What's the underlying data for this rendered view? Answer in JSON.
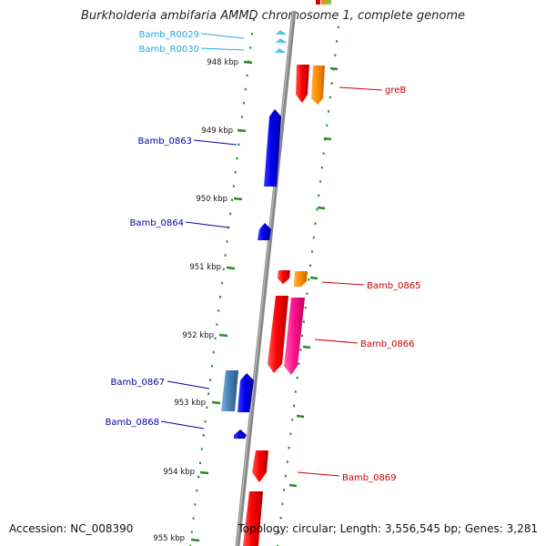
{
  "title": "Burkholderia ambifaria AMMD chromosome 1, complete genome",
  "accession": "Accession: NC_008390",
  "topology": "Topology: circular; Length: 3,556,545 bp; Genes: 3,281",
  "ticks": [
    {
      "label": "948 kbp",
      "kbp": 948
    },
    {
      "label": "949 kbp",
      "kbp": 949
    },
    {
      "label": "950 kbp",
      "kbp": 950
    },
    {
      "label": "951 kbp",
      "kbp": 951
    },
    {
      "label": "952 kbp",
      "kbp": 952
    },
    {
      "label": "953 kbp",
      "kbp": 953
    },
    {
      "label": "954 kbp",
      "kbp": 954
    },
    {
      "label": "955 kbp",
      "kbp": 955
    }
  ],
  "genes": [
    {
      "name": "Bamb_R0029",
      "strand": "minus",
      "type": "tRNA",
      "color": "#33bbee"
    },
    {
      "name": "Bamb_R0030",
      "strand": "minus",
      "type": "tRNA",
      "color": "#33bbee"
    },
    {
      "name": "greB",
      "strand": "plus",
      "type": "CDS",
      "color": "#dd0000"
    },
    {
      "name": "Bamb_0863",
      "strand": "minus",
      "type": "CDS",
      "color": "#0000cc"
    },
    {
      "name": "Bamb_0864",
      "strand": "minus",
      "type": "CDS",
      "color": "#0000cc"
    },
    {
      "name": "Bamb_0865",
      "strand": "plus",
      "type": "CDS",
      "color": "#dd0000"
    },
    {
      "name": "Bamb_0866",
      "strand": "plus",
      "type": "CDS",
      "color": "#dd0000"
    },
    {
      "name": "Bamb_0867",
      "strand": "minus",
      "type": "CDS",
      "color": "#0000cc"
    },
    {
      "name": "Bamb_0868",
      "strand": "minus",
      "type": "CDS",
      "color": "#0000cc"
    },
    {
      "name": "Bamb_0869",
      "strand": "plus",
      "type": "CDS",
      "color": "#dd0000"
    }
  ],
  "colors": {
    "minus_label": "#0000aa",
    "trna_label": "#22aadd",
    "plus_label": "#cc0000",
    "backbone": "#888888",
    "tick": "#2a8a2a",
    "feature_orange": "#ff8c00",
    "feature_magenta": "#ff1493",
    "feature_steelblue": "#4682b4"
  }
}
